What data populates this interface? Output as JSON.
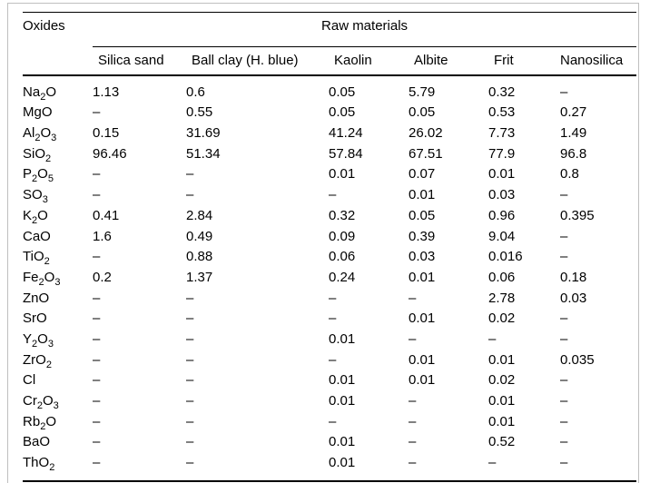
{
  "table": {
    "corner_header": "Oxides",
    "group_header": "Raw materials",
    "columns": [
      "Silica sand",
      "Ball clay (H. blue)",
      "Kaolin",
      "Albite",
      "Frit",
      "Nanosilica"
    ],
    "rows": [
      {
        "oxide": "Na2O",
        "values": [
          "1.13",
          "0.6",
          "0.05",
          "5.79",
          "0.32",
          "–"
        ]
      },
      {
        "oxide": "MgO",
        "values": [
          "–",
          "0.55",
          "0.05",
          "0.05",
          "0.53",
          "0.27"
        ]
      },
      {
        "oxide": "Al2O3",
        "values": [
          "0.15",
          "31.69",
          "41.24",
          "26.02",
          "7.73",
          "1.49"
        ]
      },
      {
        "oxide": "SiO2",
        "values": [
          "96.46",
          "51.34",
          "57.84",
          "67.51",
          "77.9",
          "96.8"
        ]
      },
      {
        "oxide": "P2O5",
        "values": [
          "–",
          "–",
          "0.01",
          "0.07",
          "0.01",
          "0.8"
        ]
      },
      {
        "oxide": "SO3",
        "values": [
          "–",
          "–",
          "–",
          "0.01",
          "0.03",
          "–"
        ]
      },
      {
        "oxide": "K2O",
        "values": [
          "0.41",
          "2.84",
          "0.32",
          "0.05",
          "0.96",
          "0.395"
        ]
      },
      {
        "oxide": "CaO",
        "values": [
          "1.6",
          "0.49",
          "0.09",
          "0.39",
          "9.04",
          "–"
        ]
      },
      {
        "oxide": "TiO2",
        "values": [
          "–",
          "0.88",
          "0.06",
          "0.03",
          "0.016",
          "–"
        ]
      },
      {
        "oxide": "Fe2O3",
        "values": [
          "0.2",
          "1.37",
          "0.24",
          "0.01",
          "0.06",
          "0.18"
        ]
      },
      {
        "oxide": "ZnO",
        "values": [
          "–",
          "–",
          "–",
          "–",
          "2.78",
          "0.03"
        ]
      },
      {
        "oxide": "SrO",
        "values": [
          "–",
          "–",
          "–",
          "0.01",
          "0.02",
          "–"
        ]
      },
      {
        "oxide": "Y2O3",
        "values": [
          "–",
          "–",
          "0.01",
          "–",
          "–",
          "–"
        ]
      },
      {
        "oxide": "ZrO2",
        "values": [
          "–",
          "–",
          "–",
          "0.01",
          "0.01",
          "0.035"
        ]
      },
      {
        "oxide": "Cl",
        "values": [
          "–",
          "–",
          "0.01",
          "0.01",
          "0.02",
          "–"
        ]
      },
      {
        "oxide": "Cr2O3",
        "values": [
          "–",
          "–",
          "0.01",
          "–",
          "0.01",
          "–"
        ]
      },
      {
        "oxide": "Rb2O",
        "values": [
          "–",
          "–",
          "–",
          "–",
          "0.01",
          "–"
        ]
      },
      {
        "oxide": "BaO",
        "values": [
          "–",
          "–",
          "0.01",
          "–",
          "0.52",
          "–"
        ]
      },
      {
        "oxide": "ThO2",
        "values": [
          "–",
          "–",
          "0.01",
          "–",
          "–",
          "–"
        ]
      }
    ],
    "colors": {
      "rule": "#000000",
      "frame": "#bfbfbf",
      "text": "#000000",
      "background": "#ffffff"
    }
  }
}
